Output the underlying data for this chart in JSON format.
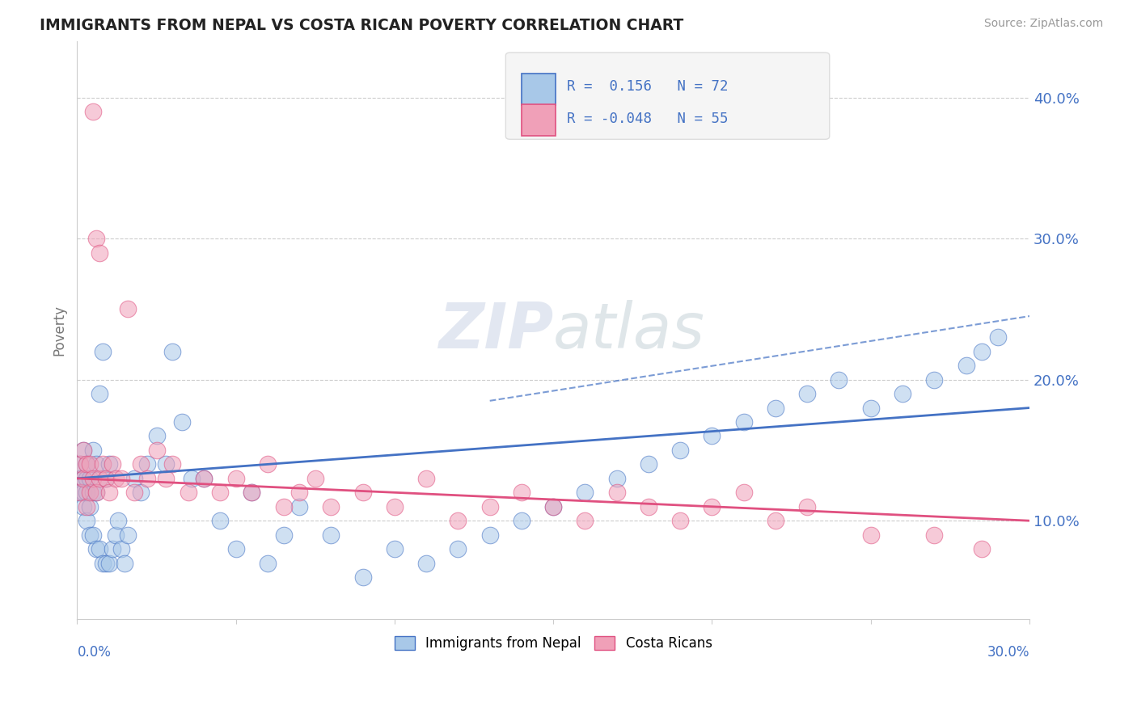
{
  "title": "IMMIGRANTS FROM NEPAL VS COSTA RICAN POVERTY CORRELATION CHART",
  "source": "Source: ZipAtlas.com",
  "watermark": "ZIPatlas",
  "ylabel": "Poverty",
  "ytick_vals": [
    0.1,
    0.2,
    0.3,
    0.4
  ],
  "xlim": [
    0.0,
    0.3
  ],
  "ylim": [
    0.03,
    0.44
  ],
  "color_blue": "#a8c8e8",
  "color_pink": "#f0a0b8",
  "line_blue": "#4472c4",
  "line_pink": "#e05080",
  "nepal_R": 0.156,
  "costa_R": -0.048,
  "nepal_N": 72,
  "costa_N": 55,
  "background_color": "#ffffff",
  "grid_color": "#cccccc",
  "nepal_x": [
    0.001,
    0.001,
    0.001,
    0.002,
    0.002,
    0.002,
    0.002,
    0.003,
    0.003,
    0.003,
    0.003,
    0.004,
    0.004,
    0.004,
    0.005,
    0.005,
    0.005,
    0.006,
    0.006,
    0.006,
    0.007,
    0.007,
    0.008,
    0.008,
    0.009,
    0.009,
    0.01,
    0.01,
    0.011,
    0.012,
    0.013,
    0.014,
    0.015,
    0.016,
    0.018,
    0.02,
    0.022,
    0.025,
    0.028,
    0.03,
    0.033,
    0.036,
    0.04,
    0.045,
    0.05,
    0.055,
    0.06,
    0.065,
    0.07,
    0.08,
    0.09,
    0.1,
    0.11,
    0.12,
    0.13,
    0.14,
    0.15,
    0.16,
    0.17,
    0.18,
    0.19,
    0.2,
    0.21,
    0.22,
    0.23,
    0.24,
    0.25,
    0.26,
    0.27,
    0.28,
    0.285,
    0.29
  ],
  "nepal_y": [
    0.14,
    0.13,
    0.12,
    0.15,
    0.13,
    0.12,
    0.11,
    0.14,
    0.13,
    0.12,
    0.1,
    0.13,
    0.11,
    0.09,
    0.15,
    0.12,
    0.09,
    0.14,
    0.12,
    0.08,
    0.19,
    0.08,
    0.22,
    0.07,
    0.13,
    0.07,
    0.14,
    0.07,
    0.08,
    0.09,
    0.1,
    0.08,
    0.07,
    0.09,
    0.13,
    0.12,
    0.14,
    0.16,
    0.14,
    0.22,
    0.17,
    0.13,
    0.13,
    0.1,
    0.08,
    0.12,
    0.07,
    0.09,
    0.11,
    0.09,
    0.06,
    0.08,
    0.07,
    0.08,
    0.09,
    0.1,
    0.11,
    0.12,
    0.13,
    0.14,
    0.15,
    0.16,
    0.17,
    0.18,
    0.19,
    0.2,
    0.18,
    0.19,
    0.2,
    0.21,
    0.22,
    0.23
  ],
  "costa_x": [
    0.001,
    0.001,
    0.002,
    0.002,
    0.003,
    0.003,
    0.004,
    0.004,
    0.005,
    0.005,
    0.006,
    0.006,
    0.007,
    0.007,
    0.008,
    0.009,
    0.01,
    0.011,
    0.012,
    0.014,
    0.016,
    0.018,
    0.02,
    0.022,
    0.025,
    0.028,
    0.03,
    0.035,
    0.04,
    0.045,
    0.05,
    0.055,
    0.06,
    0.065,
    0.07,
    0.075,
    0.08,
    0.09,
    0.1,
    0.11,
    0.12,
    0.13,
    0.14,
    0.15,
    0.16,
    0.17,
    0.18,
    0.19,
    0.2,
    0.21,
    0.22,
    0.23,
    0.25,
    0.27,
    0.285
  ],
  "costa_y": [
    0.14,
    0.12,
    0.15,
    0.13,
    0.14,
    0.11,
    0.14,
    0.12,
    0.39,
    0.13,
    0.3,
    0.12,
    0.29,
    0.13,
    0.14,
    0.13,
    0.12,
    0.14,
    0.13,
    0.13,
    0.25,
    0.12,
    0.14,
    0.13,
    0.15,
    0.13,
    0.14,
    0.12,
    0.13,
    0.12,
    0.13,
    0.12,
    0.14,
    0.11,
    0.12,
    0.13,
    0.11,
    0.12,
    0.11,
    0.13,
    0.1,
    0.11,
    0.12,
    0.11,
    0.1,
    0.12,
    0.11,
    0.1,
    0.11,
    0.12,
    0.1,
    0.11,
    0.09,
    0.09,
    0.08
  ]
}
